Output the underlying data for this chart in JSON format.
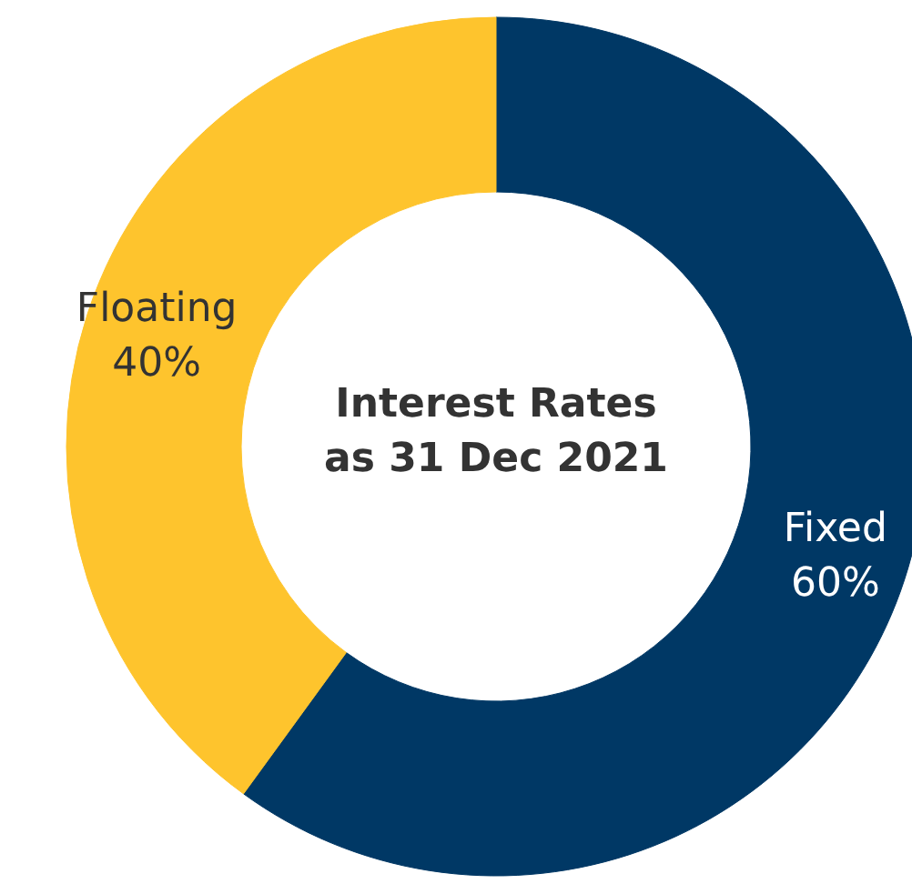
{
  "chart_data": {
    "type": "donut",
    "title": "Interest Rates\nas 31 Dec 2021",
    "categories": [
      "Fixed",
      "Floating"
    ],
    "values": [
      60,
      40
    ],
    "colors": [
      "#003865",
      "#fec42d"
    ],
    "value_labels": [
      "60%",
      "40%"
    ],
    "legend": false
  }
}
